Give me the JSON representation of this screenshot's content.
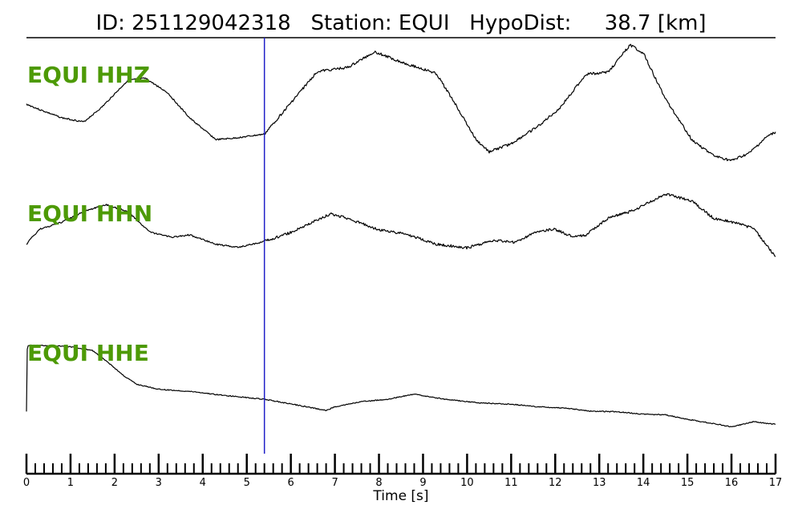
{
  "colors": {
    "trace": "#000000",
    "marker": "#1f1fc8",
    "channel_label": "#4d9a06",
    "rule": "#000000"
  },
  "header": {
    "title": "ID: 251129042318   Station: EQUI   HypoDist:     38.7 [km]"
  },
  "chart_data": {
    "type": "line",
    "title": "ID: 251129042318   Station: EQUI   HypoDist:     38.7 [km]",
    "xlabel": "Time [s]",
    "ylabel": "",
    "xlim": [
      0,
      17
    ],
    "grid": false,
    "x_major_ticks": [
      0,
      1,
      2,
      3,
      4,
      5,
      6,
      7,
      8,
      9,
      10,
      11,
      12,
      13,
      14,
      15,
      16,
      17
    ],
    "x_minor_step": 0.2,
    "pick_marker_time": 5.4,
    "series": [
      {
        "name": "EQUI HHZ",
        "x": [
          0,
          0.3,
          0.8,
          1.3,
          1.7,
          2.3,
          2.7,
          3.2,
          3.7,
          4.3,
          4.7,
          5.4,
          6.0,
          6.6,
          7.3,
          7.9,
          8.5,
          9.3,
          9.7,
          10.2,
          10.5,
          11.0,
          11.6,
          12.1,
          12.7,
          13.2,
          13.7,
          14.0,
          14.5,
          15.1,
          15.6,
          16.0,
          16.4,
          16.8,
          17.0
        ],
        "values": [
          0.0,
          -0.08,
          -0.2,
          -0.26,
          -0.05,
          0.35,
          0.38,
          0.17,
          -0.2,
          -0.52,
          -0.5,
          -0.44,
          0.02,
          0.48,
          0.54,
          0.77,
          0.62,
          0.45,
          0.04,
          -0.52,
          -0.7,
          -0.58,
          -0.33,
          -0.06,
          0.44,
          0.47,
          0.87,
          0.75,
          0.08,
          -0.52,
          -0.76,
          -0.83,
          -0.72,
          -0.48,
          -0.41
        ]
      },
      {
        "name": "EQUI HHN",
        "x": [
          0,
          0.05,
          0.3,
          0.8,
          1.3,
          1.8,
          2.3,
          2.8,
          3.3,
          3.7,
          4.3,
          4.8,
          5.4,
          6.0,
          6.5,
          6.9,
          7.3,
          8.0,
          8.6,
          9.3,
          10.0,
          10.6,
          11.1,
          11.6,
          12.0,
          12.4,
          12.7,
          13.2,
          13.8,
          14.5,
          15.1,
          15.6,
          16.0,
          16.5,
          17.0
        ],
        "values": [
          -0.22,
          -0.13,
          0.12,
          0.27,
          0.5,
          0.65,
          0.5,
          0.06,
          -0.05,
          0.0,
          -0.2,
          -0.27,
          -0.14,
          0.05,
          0.28,
          0.45,
          0.35,
          0.11,
          0.02,
          -0.2,
          -0.28,
          -0.12,
          -0.16,
          0.08,
          0.12,
          -0.05,
          0.0,
          0.36,
          0.53,
          0.88,
          0.73,
          0.35,
          0.28,
          0.14,
          -0.47
        ]
      },
      {
        "name": "EQUI HHE",
        "x": [
          0,
          0.02,
          0.5,
          1.0,
          1.5,
          1.9,
          2.2,
          2.5,
          3.0,
          3.8,
          4.5,
          5.4,
          6.2,
          6.8,
          7.0,
          7.6,
          8.2,
          8.8,
          9.5,
          10.3,
          11.0,
          11.6,
          12.2,
          12.8,
          13.4,
          14.0,
          14.5,
          15.0,
          15.5,
          16.0,
          16.5,
          17.0
        ],
        "values": [
          -0.55,
          0.5,
          0.5,
          0.48,
          0.42,
          0.2,
          0.02,
          -0.12,
          -0.2,
          -0.24,
          -0.3,
          -0.36,
          -0.46,
          -0.54,
          -0.48,
          -0.4,
          -0.36,
          -0.28,
          -0.36,
          -0.42,
          -0.44,
          -0.48,
          -0.5,
          -0.55,
          -0.56,
          -0.6,
          -0.61,
          -0.68,
          -0.74,
          -0.8,
          -0.72,
          -0.76
        ]
      }
    ]
  }
}
